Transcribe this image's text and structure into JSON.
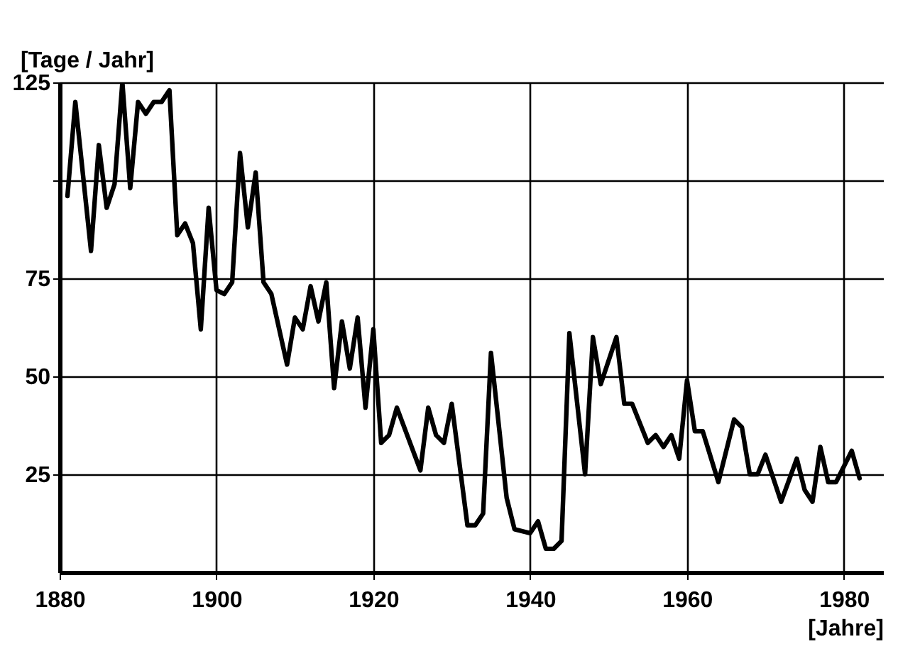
{
  "chart_data": {
    "type": "line",
    "ylabel": "[Tage / Jahr]",
    "xlabel": "[Jahre]",
    "x": [
      1881,
      1882,
      1884,
      1885,
      1886,
      1887,
      1888,
      1889,
      1890,
      1891,
      1892,
      1893,
      1894,
      1895,
      1896,
      1897,
      1898,
      1899,
      1900,
      1901,
      1902,
      1903,
      1904,
      1905,
      1906,
      1907,
      1909,
      1910,
      1911,
      1912,
      1913,
      1914,
      1915,
      1916,
      1917,
      1918,
      1919,
      1920,
      1921,
      1922,
      1923,
      1926,
      1927,
      1928,
      1929,
      1930,
      1932,
      1933,
      1934,
      1935,
      1937,
      1938,
      1940,
      1941,
      1942,
      1943,
      1944,
      1945,
      1947,
      1948,
      1949,
      1951,
      1952,
      1953,
      1955,
      1956,
      1957,
      1958,
      1959,
      1960,
      1961,
      1962,
      1964,
      1966,
      1967,
      1968,
      1969,
      1970,
      1972,
      1974,
      1975,
      1976,
      1977,
      1978,
      1979,
      1981,
      1982
    ],
    "series": [
      {
        "color": "#000000",
        "values": [
          96,
          120,
          82,
          109,
          93,
          99,
          125,
          98,
          120,
          117,
          120,
          120,
          123,
          86,
          89,
          84,
          62,
          93,
          72,
          71,
          74,
          107,
          88,
          102,
          74,
          71,
          53,
          65,
          62,
          73,
          64,
          74,
          47,
          64,
          52,
          65,
          42,
          62,
          33,
          35,
          42,
          26,
          42,
          35,
          33,
          43,
          12,
          12,
          15,
          56,
          19,
          11,
          10,
          13,
          6,
          6,
          8,
          61,
          25,
          60,
          48,
          60,
          43,
          43,
          33,
          35,
          32,
          35,
          29,
          49,
          36,
          36,
          23,
          39,
          37,
          25,
          25,
          30,
          18,
          29,
          21,
          18,
          32,
          23,
          23,
          31,
          24
        ]
      }
    ],
    "xlim": [
      1880,
      1985
    ],
    "ylim": [
      0,
      125
    ],
    "xticks": [
      1880,
      1900,
      1920,
      1940,
      1960,
      1980
    ],
    "yticks": [
      125,
      {
        "value": 100,
        "label": null
      },
      75,
      50,
      25
    ],
    "grid": true,
    "marker": "none",
    "line_style": "solid"
  }
}
